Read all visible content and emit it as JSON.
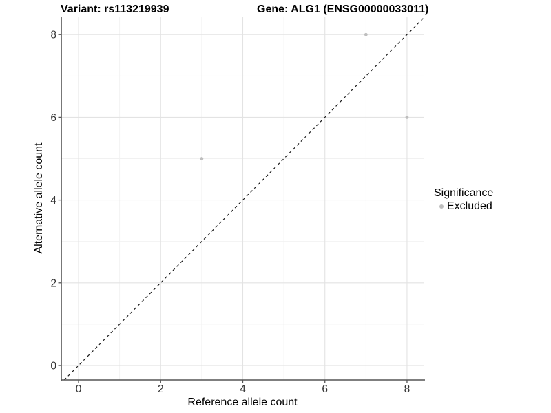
{
  "chart_data": {
    "type": "scatter",
    "title_left": "Variant: rs113219939",
    "title_right": "Gene: ALG1 (ENSG00000033011)",
    "xlabel": "Reference allele count",
    "ylabel": "Alternative allele count",
    "xlim": [
      -0.42,
      8.42
    ],
    "ylim": [
      -0.35,
      8.42
    ],
    "x_major_ticks": [
      0,
      2,
      4,
      6,
      8
    ],
    "y_major_ticks": [
      0,
      2,
      4,
      6,
      8
    ],
    "x_minor_gridlines": [
      1,
      3,
      5,
      7
    ],
    "y_minor_gridlines": [
      1,
      3,
      5,
      7
    ],
    "grid": true,
    "identity_line": {
      "slope": 1,
      "intercept": 0,
      "style": "dashed",
      "color": "#1a1a1a"
    },
    "series": [
      {
        "name": "Excluded",
        "color": "#bebebe",
        "points": [
          [
            3,
            5
          ],
          [
            7,
            8
          ],
          [
            8,
            6
          ]
        ]
      }
    ],
    "legend": {
      "title": "Significance",
      "position": "right",
      "items": [
        {
          "label": "Excluded",
          "color": "#bebebe"
        }
      ]
    }
  },
  "colors": {
    "background": "#ffffff",
    "grid_major": "#e3e3e3",
    "grid_minor": "#f1f1f1",
    "axis_line": "#555555",
    "tick_mark": "#555555",
    "tick_label": "#333333",
    "point": "#bebebe"
  }
}
